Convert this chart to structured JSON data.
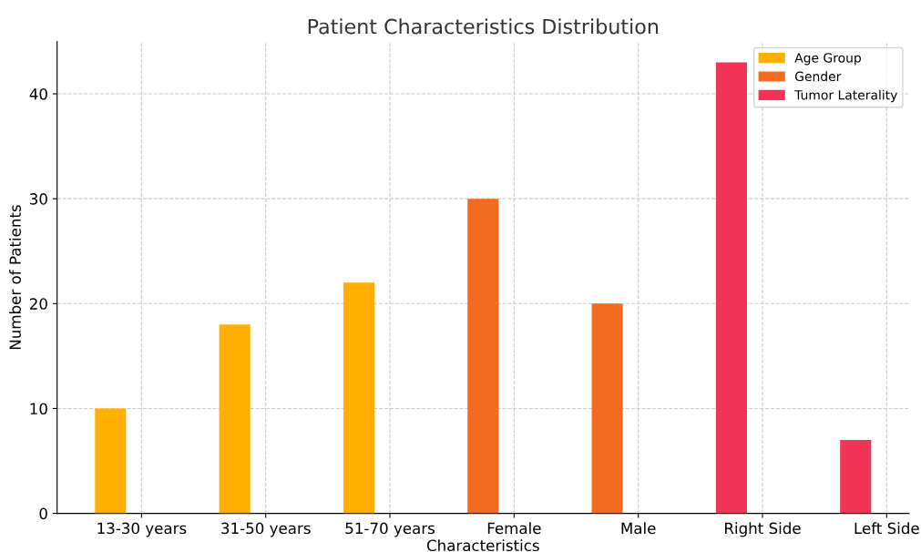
{
  "chart_data": {
    "type": "bar",
    "title": "Patient Characteristics Distribution",
    "xlabel": "Characteristics",
    "ylabel": "Number of Patients",
    "categories": [
      "13-30 years",
      "31-50 years",
      "51-70 years",
      "Female",
      "Male",
      "Right Side",
      "Left Side"
    ],
    "series": [
      {
        "name": "Age Group",
        "color": "#ffaf00",
        "values": [
          10,
          18,
          22,
          null,
          null,
          null,
          null
        ]
      },
      {
        "name": "Gender",
        "color": "#f26b21",
        "values": [
          null,
          null,
          null,
          30,
          20,
          null,
          null
        ]
      },
      {
        "name": "Tumor Laterality",
        "color": "#f23456",
        "values": [
          null,
          null,
          null,
          null,
          null,
          43,
          7
        ]
      }
    ],
    "ylim": [
      0,
      45
    ],
    "yticks": [
      0,
      10,
      20,
      30,
      40
    ],
    "grid": true,
    "legend": "top right"
  }
}
